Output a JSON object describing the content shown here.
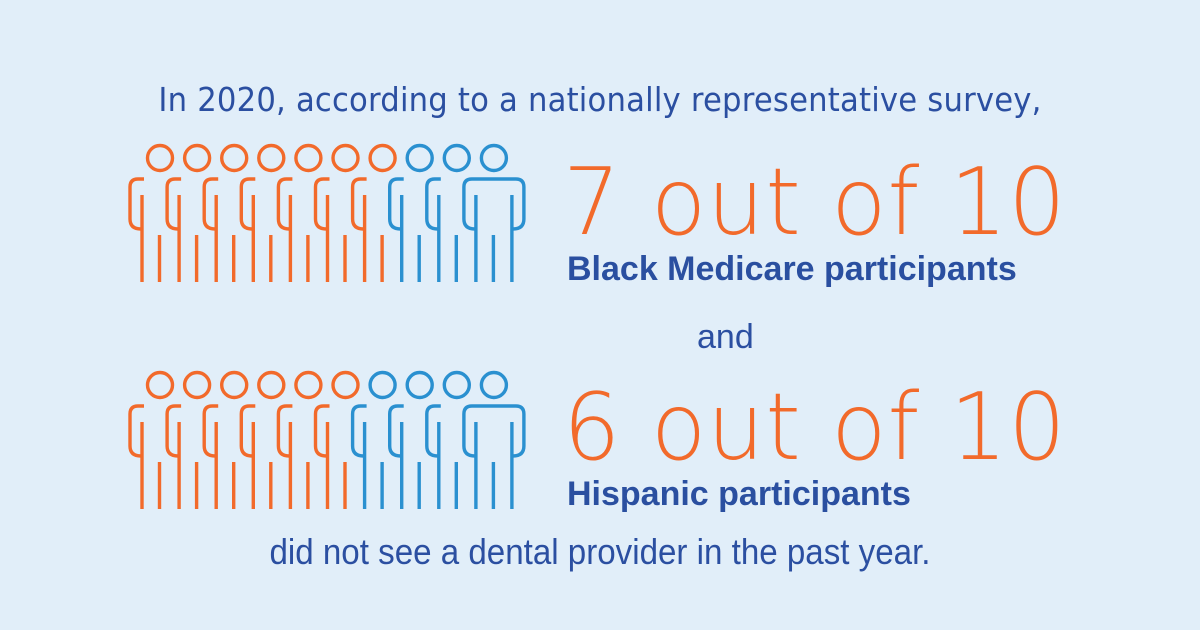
{
  "intro_text": "In 2020, according to a nationally representative survey,",
  "groups": [
    {
      "stat": "7 out of 10",
      "label": "Black Medicare participants",
      "highlighted_count": 7,
      "total": 10
    },
    {
      "stat": "6 out of 10",
      "label": "Hispanic participants",
      "highlighted_count": 6,
      "total": 10
    }
  ],
  "connector_text": "and",
  "outro_text": "did not see a dental provider in the past year.",
  "colors": {
    "background": "#e1eef9",
    "highlight": "#f26a2b",
    "other": "#2a90d0",
    "text": "#2b4fa1"
  },
  "icons": {
    "person": "person-outline-icon"
  }
}
